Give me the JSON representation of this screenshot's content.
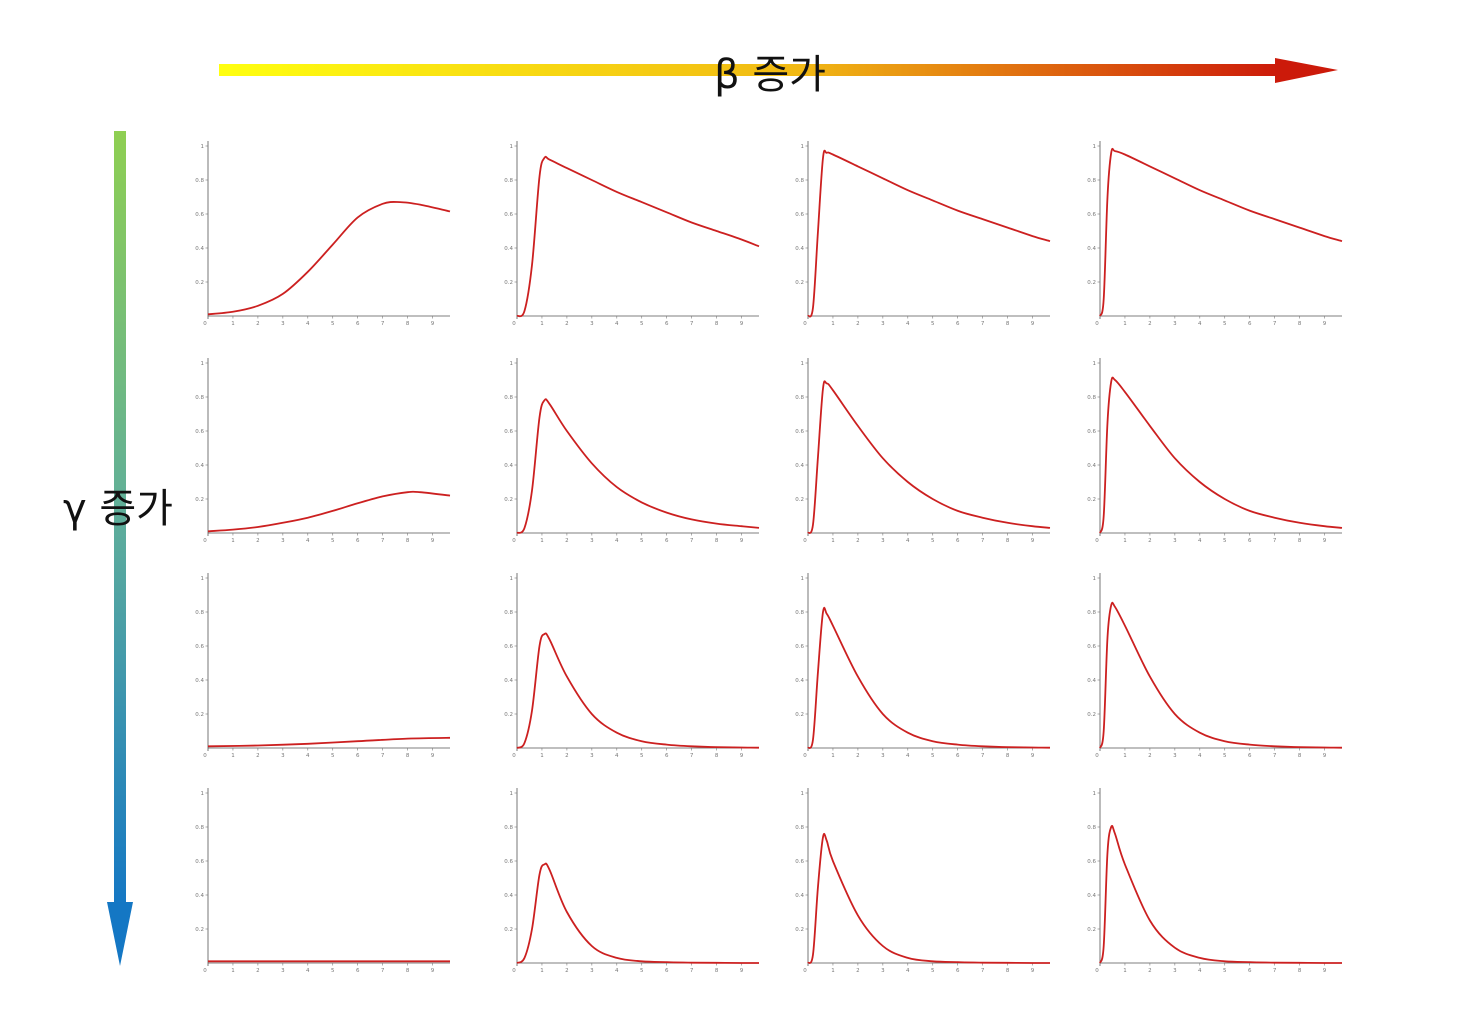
{
  "top_arrow": {
    "label": "β 증가",
    "color_start": "#ffff10",
    "color_end": "#cc1a0a"
  },
  "left_arrow": {
    "label": "γ 증가",
    "color_start": "#8fcf52",
    "color_end": "#1477c4"
  },
  "curve_color": "#cc2020",
  "chart_data": {
    "type": "line",
    "layout": "grid 4 rows x 4 columns",
    "x_ticks": [
      "0",
      "1",
      "2",
      "3",
      "4",
      "5",
      "6",
      "7",
      "8",
      "9"
    ],
    "y_ticks": [
      "0",
      "0.2",
      "0.4",
      "0.6",
      "0.8",
      "1"
    ],
    "xlim": [
      0,
      9.7
    ],
    "ylim": [
      0,
      1
    ],
    "grid": false,
    "panels": [
      {
        "row": 1,
        "col": 1,
        "x": [
          0,
          1,
          2,
          3,
          4,
          5,
          6,
          7,
          7.7,
          8.5,
          9.7
        ],
        "y": [
          0.01,
          0.025,
          0.06,
          0.13,
          0.26,
          0.42,
          0.58,
          0.66,
          0.67,
          0.655,
          0.615
        ]
      },
      {
        "row": 1,
        "col": 2,
        "x": [
          0,
          0.3,
          0.6,
          0.9,
          1.1,
          1.3,
          2,
          3,
          4,
          5,
          6,
          7,
          8,
          9,
          9.7
        ],
        "y": [
          0,
          0.03,
          0.3,
          0.82,
          0.93,
          0.92,
          0.87,
          0.8,
          0.73,
          0.67,
          0.61,
          0.55,
          0.5,
          0.45,
          0.41
        ]
      },
      {
        "row": 1,
        "col": 3,
        "x": [
          0,
          0.2,
          0.4,
          0.6,
          0.75,
          1,
          2,
          3,
          4,
          5,
          6,
          7,
          8,
          9,
          9.7
        ],
        "y": [
          0,
          0.05,
          0.5,
          0.93,
          0.96,
          0.95,
          0.88,
          0.81,
          0.74,
          0.68,
          0.62,
          0.57,
          0.52,
          0.47,
          0.44
        ]
      },
      {
        "row": 1,
        "col": 4,
        "x": [
          0,
          0.15,
          0.3,
          0.45,
          0.6,
          1,
          2,
          3,
          4,
          5,
          6,
          7,
          8,
          9,
          9.7
        ],
        "y": [
          0,
          0.1,
          0.7,
          0.96,
          0.97,
          0.95,
          0.88,
          0.81,
          0.74,
          0.68,
          0.62,
          0.57,
          0.52,
          0.47,
          0.44
        ]
      },
      {
        "row": 2,
        "col": 1,
        "x": [
          0,
          1,
          2,
          3,
          4,
          5,
          6,
          7,
          8,
          8.5,
          9.7
        ],
        "y": [
          0.01,
          0.02,
          0.035,
          0.06,
          0.09,
          0.13,
          0.175,
          0.215,
          0.24,
          0.24,
          0.22
        ]
      },
      {
        "row": 2,
        "col": 2,
        "x": [
          0,
          0.3,
          0.6,
          0.9,
          1.1,
          1.3,
          2,
          3,
          4,
          5,
          6,
          7,
          8,
          9,
          9.7
        ],
        "y": [
          0,
          0.03,
          0.25,
          0.68,
          0.78,
          0.76,
          0.6,
          0.41,
          0.27,
          0.18,
          0.12,
          0.08,
          0.055,
          0.04,
          0.03
        ]
      },
      {
        "row": 2,
        "col": 3,
        "x": [
          0,
          0.2,
          0.4,
          0.6,
          0.75,
          1,
          2,
          3,
          4,
          5,
          6,
          7,
          8,
          9,
          9.7
        ],
        "y": [
          0,
          0.05,
          0.45,
          0.85,
          0.88,
          0.84,
          0.63,
          0.44,
          0.3,
          0.2,
          0.13,
          0.09,
          0.06,
          0.04,
          0.03
        ]
      },
      {
        "row": 2,
        "col": 4,
        "x": [
          0,
          0.15,
          0.3,
          0.45,
          0.6,
          1,
          2,
          3,
          4,
          5,
          6,
          7,
          8,
          9,
          9.7
        ],
        "y": [
          0,
          0.1,
          0.65,
          0.89,
          0.9,
          0.83,
          0.63,
          0.44,
          0.3,
          0.2,
          0.13,
          0.09,
          0.06,
          0.04,
          0.03
        ]
      },
      {
        "row": 3,
        "col": 1,
        "x": [
          0,
          2,
          4,
          6,
          8,
          9.7
        ],
        "y": [
          0.01,
          0.015,
          0.025,
          0.04,
          0.055,
          0.06
        ]
      },
      {
        "row": 3,
        "col": 2,
        "x": [
          0,
          0.3,
          0.6,
          0.9,
          1.1,
          1.3,
          2,
          3,
          4,
          5,
          6,
          7,
          8,
          9,
          9.7
        ],
        "y": [
          0,
          0.03,
          0.22,
          0.6,
          0.67,
          0.64,
          0.42,
          0.2,
          0.09,
          0.04,
          0.02,
          0.01,
          0.005,
          0.003,
          0.002
        ]
      },
      {
        "row": 3,
        "col": 3,
        "x": [
          0,
          0.2,
          0.4,
          0.6,
          0.75,
          1,
          2,
          3,
          4,
          5,
          6,
          7,
          8,
          9,
          9.7
        ],
        "y": [
          0,
          0.05,
          0.45,
          0.8,
          0.79,
          0.72,
          0.42,
          0.2,
          0.09,
          0.04,
          0.02,
          0.01,
          0.005,
          0.003,
          0.002
        ]
      },
      {
        "row": 3,
        "col": 4,
        "x": [
          0,
          0.15,
          0.3,
          0.45,
          0.6,
          1,
          2,
          3,
          4,
          5,
          6,
          7,
          8,
          9,
          9.7
        ],
        "y": [
          0,
          0.1,
          0.65,
          0.84,
          0.83,
          0.72,
          0.42,
          0.2,
          0.09,
          0.04,
          0.02,
          0.01,
          0.005,
          0.003,
          0.002
        ]
      },
      {
        "row": 4,
        "col": 1,
        "x": [
          0,
          3,
          6,
          9.7
        ],
        "y": [
          0.01,
          0.01,
          0.01,
          0.01
        ]
      },
      {
        "row": 4,
        "col": 2,
        "x": [
          0,
          0.3,
          0.6,
          0.9,
          1.1,
          1.3,
          2,
          3,
          4,
          5,
          6,
          7,
          8,
          9,
          9.7
        ],
        "y": [
          0,
          0.03,
          0.2,
          0.52,
          0.58,
          0.55,
          0.3,
          0.1,
          0.03,
          0.01,
          0.005,
          0.002,
          0.001,
          0,
          0
        ]
      },
      {
        "row": 4,
        "col": 3,
        "x": [
          0,
          0.2,
          0.4,
          0.6,
          0.75,
          1,
          2,
          3,
          4,
          5,
          6,
          7,
          8,
          9,
          9.7
        ],
        "y": [
          0,
          0.05,
          0.45,
          0.74,
          0.72,
          0.6,
          0.28,
          0.1,
          0.03,
          0.01,
          0.005,
          0.002,
          0.001,
          0,
          0
        ]
      },
      {
        "row": 4,
        "col": 4,
        "x": [
          0,
          0.15,
          0.3,
          0.45,
          0.6,
          1,
          2,
          3,
          4,
          5,
          6,
          7,
          8,
          9,
          9.7
        ],
        "y": [
          0,
          0.1,
          0.65,
          0.8,
          0.76,
          0.58,
          0.25,
          0.09,
          0.03,
          0.01,
          0.005,
          0.002,
          0.001,
          0,
          0
        ]
      }
    ]
  }
}
